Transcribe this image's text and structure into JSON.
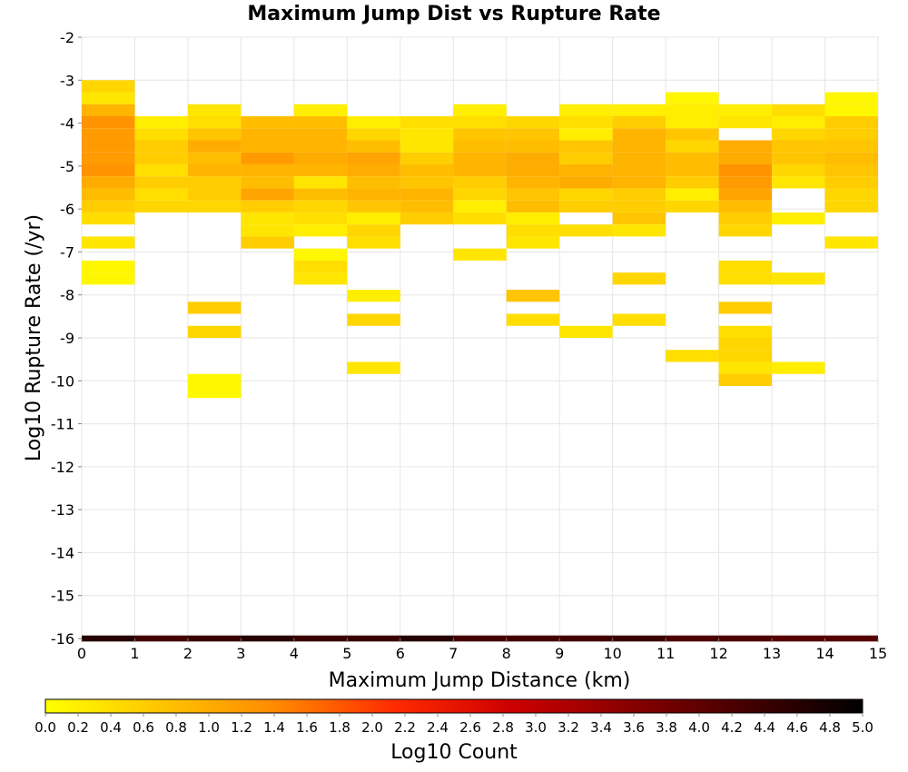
{
  "chart_data": {
    "type": "heatmap",
    "title": "Maximum Jump Dist vs Rupture Rate",
    "xlabel": "Maximum Jump Distance (km)",
    "ylabel": "Log10 Rupture Rate (/yr)",
    "xlim": [
      0,
      15
    ],
    "ylim": [
      -16,
      -2
    ],
    "x_ticks": [
      "0",
      "1",
      "2",
      "3",
      "4",
      "5",
      "6",
      "7",
      "8",
      "9",
      "10",
      "11",
      "12",
      "13",
      "14",
      "15"
    ],
    "y_ticks": [
      "-2",
      "-3",
      "-4",
      "-5",
      "-6",
      "-7",
      "-8",
      "-9",
      "-10",
      "-11",
      "-12",
      "-13",
      "-14",
      "-15",
      "-16"
    ],
    "x_bin_width": 1,
    "y_bin_height": 0.28,
    "grid": true,
    "colorbar": {
      "label": "Log10 Count",
      "range": [
        0,
        5
      ],
      "ticks": [
        "0.0",
        "0.2",
        "0.4",
        "0.6",
        "0.8",
        "1.0",
        "1.2",
        "1.4",
        "1.6",
        "1.8",
        "2.0",
        "2.2",
        "2.4",
        "2.6",
        "2.8",
        "3.0",
        "3.2",
        "3.4",
        "3.6",
        "3.8",
        "4.0",
        "4.2",
        "4.4",
        "4.6",
        "4.8",
        "5.0"
      ],
      "colors": [
        "#ffff00",
        "#ffc400",
        "#ff8800",
        "#ff2a00",
        "#cc0000",
        "#880000",
        "#440000",
        "#000000"
      ]
    },
    "cells": [
      [
        0,
        -3.14,
        0.5
      ],
      [
        0,
        -3.42,
        0.3
      ],
      [
        0,
        -3.7,
        0.9
      ],
      [
        0,
        -3.98,
        1.3
      ],
      [
        0,
        -4.26,
        1.2
      ],
      [
        0,
        -4.54,
        1.2
      ],
      [
        0,
        -4.82,
        1.2
      ],
      [
        0,
        -5.1,
        1.3
      ],
      [
        0,
        -5.38,
        1.0
      ],
      [
        0,
        -5.66,
        0.8
      ],
      [
        0,
        -5.94,
        0.6
      ],
      [
        0,
        -6.22,
        0.4
      ],
      [
        0,
        -6.78,
        0.3
      ],
      [
        0,
        -7.34,
        0.1
      ],
      [
        0,
        -7.62,
        0.1
      ],
      [
        1,
        -3.98,
        0.2
      ],
      [
        1,
        -4.26,
        0.4
      ],
      [
        1,
        -4.54,
        0.6
      ],
      [
        1,
        -4.82,
        0.6
      ],
      [
        1,
        -5.1,
        0.4
      ],
      [
        1,
        -5.38,
        0.6
      ],
      [
        1,
        -5.66,
        0.4
      ],
      [
        1,
        -5.94,
        0.5
      ],
      [
        2,
        -3.7,
        0.3
      ],
      [
        2,
        -3.98,
        0.4
      ],
      [
        2,
        -4.26,
        0.7
      ],
      [
        2,
        -4.54,
        1.0
      ],
      [
        2,
        -4.82,
        0.8
      ],
      [
        2,
        -5.1,
        0.9
      ],
      [
        2,
        -5.38,
        0.6
      ],
      [
        2,
        -5.66,
        0.6
      ],
      [
        2,
        -5.94,
        0.5
      ],
      [
        2,
        -8.3,
        0.6
      ],
      [
        2,
        -8.86,
        0.5
      ],
      [
        2,
        -9.98,
        0.1
      ],
      [
        2,
        -10.26,
        0.1
      ],
      [
        3,
        -3.98,
        0.8
      ],
      [
        3,
        -4.26,
        0.9
      ],
      [
        3,
        -4.54,
        0.9
      ],
      [
        3,
        -4.82,
        1.2
      ],
      [
        3,
        -5.1,
        0.9
      ],
      [
        3,
        -5.38,
        0.8
      ],
      [
        3,
        -5.66,
        1.1
      ],
      [
        3,
        -5.94,
        0.6
      ],
      [
        3,
        -6.22,
        0.3
      ],
      [
        3,
        -6.5,
        0.3
      ],
      [
        3,
        -6.78,
        0.6
      ],
      [
        4,
        -3.7,
        0.2
      ],
      [
        4,
        -3.98,
        0.8
      ],
      [
        4,
        -4.26,
        0.9
      ],
      [
        4,
        -4.54,
        0.9
      ],
      [
        4,
        -4.82,
        1.0
      ],
      [
        4,
        -5.1,
        0.9
      ],
      [
        4,
        -5.38,
        0.3
      ],
      [
        4,
        -5.66,
        0.8
      ],
      [
        4,
        -5.94,
        0.5
      ],
      [
        4,
        -6.22,
        0.4
      ],
      [
        4,
        -6.5,
        0.2
      ],
      [
        4,
        -7.06,
        0.1
      ],
      [
        4,
        -7.34,
        0.4
      ],
      [
        4,
        -7.62,
        0.3
      ],
      [
        5,
        -3.98,
        0.2
      ],
      [
        5,
        -4.26,
        0.5
      ],
      [
        5,
        -4.54,
        0.8
      ],
      [
        5,
        -4.82,
        1.1
      ],
      [
        5,
        -5.1,
        1.0
      ],
      [
        5,
        -5.38,
        0.8
      ],
      [
        5,
        -5.66,
        0.9
      ],
      [
        5,
        -5.94,
        0.7
      ],
      [
        5,
        -6.22,
        0.2
      ],
      [
        5,
        -6.5,
        0.5
      ],
      [
        5,
        -6.78,
        0.4
      ],
      [
        5,
        -8.02,
        0.2
      ],
      [
        5,
        -8.58,
        0.5
      ],
      [
        5,
        -9.7,
        0.3
      ],
      [
        6,
        -3.98,
        0.4
      ],
      [
        6,
        -4.26,
        0.3
      ],
      [
        6,
        -4.54,
        0.3
      ],
      [
        6,
        -4.82,
        0.6
      ],
      [
        6,
        -5.1,
        0.8
      ],
      [
        6,
        -5.38,
        0.7
      ],
      [
        6,
        -5.66,
        0.9
      ],
      [
        6,
        -5.94,
        0.8
      ],
      [
        6,
        -6.22,
        0.6
      ],
      [
        7,
        -3.7,
        0.2
      ],
      [
        7,
        -3.98,
        0.4
      ],
      [
        7,
        -4.26,
        0.7
      ],
      [
        7,
        -4.54,
        0.8
      ],
      [
        7,
        -4.82,
        0.9
      ],
      [
        7,
        -5.1,
        0.9
      ],
      [
        7,
        -5.38,
        0.6
      ],
      [
        7,
        -5.66,
        0.5
      ],
      [
        7,
        -5.94,
        0.2
      ],
      [
        7,
        -6.22,
        0.4
      ],
      [
        7,
        -7.06,
        0.3
      ],
      [
        8,
        -3.98,
        0.5
      ],
      [
        8,
        -4.26,
        0.7
      ],
      [
        8,
        -4.54,
        0.8
      ],
      [
        8,
        -4.82,
        1.0
      ],
      [
        8,
        -5.1,
        1.0
      ],
      [
        8,
        -5.38,
        0.9
      ],
      [
        8,
        -5.66,
        0.7
      ],
      [
        8,
        -5.94,
        0.8
      ],
      [
        8,
        -6.22,
        0.2
      ],
      [
        8,
        -6.5,
        0.4
      ],
      [
        8,
        -6.78,
        0.3
      ],
      [
        8,
        -8.02,
        0.7
      ],
      [
        8,
        -8.58,
        0.4
      ],
      [
        9,
        -3.7,
        0.2
      ],
      [
        9,
        -3.98,
        0.4
      ],
      [
        9,
        -4.26,
        0.2
      ],
      [
        9,
        -4.54,
        0.7
      ],
      [
        9,
        -4.82,
        0.6
      ],
      [
        9,
        -5.1,
        0.9
      ],
      [
        9,
        -5.38,
        1.0
      ],
      [
        9,
        -5.66,
        0.5
      ],
      [
        9,
        -5.94,
        0.6
      ],
      [
        9,
        -6.5,
        0.4
      ],
      [
        9,
        -8.86,
        0.3
      ],
      [
        10,
        -3.7,
        0.2
      ],
      [
        10,
        -3.98,
        0.6
      ],
      [
        10,
        -4.26,
        0.9
      ],
      [
        10,
        -4.54,
        0.9
      ],
      [
        10,
        -4.82,
        0.9
      ],
      [
        10,
        -5.1,
        0.9
      ],
      [
        10,
        -5.38,
        0.9
      ],
      [
        10,
        -5.66,
        0.6
      ],
      [
        10,
        -5.94,
        0.6
      ],
      [
        10,
        -6.22,
        0.7
      ],
      [
        10,
        -6.5,
        0.3
      ],
      [
        10,
        -7.62,
        0.5
      ],
      [
        10,
        -8.58,
        0.4
      ],
      [
        11,
        -3.42,
        0.1
      ],
      [
        11,
        -3.7,
        0.2
      ],
      [
        11,
        -3.98,
        0.2
      ],
      [
        11,
        -4.26,
        0.7
      ],
      [
        11,
        -4.54,
        0.5
      ],
      [
        11,
        -4.82,
        0.8
      ],
      [
        11,
        -5.1,
        0.8
      ],
      [
        11,
        -5.38,
        0.6
      ],
      [
        11,
        -5.66,
        0.2
      ],
      [
        11,
        -5.94,
        0.5
      ],
      [
        11,
        -9.42,
        0.4
      ],
      [
        12,
        -3.7,
        0.2
      ],
      [
        12,
        -3.98,
        0.3
      ],
      [
        12,
        -4.54,
        1.0
      ],
      [
        12,
        -4.82,
        1.0
      ],
      [
        12,
        -5.1,
        1.3
      ],
      [
        12,
        -5.38,
        1.2
      ],
      [
        12,
        -5.66,
        1.1
      ],
      [
        12,
        -5.94,
        0.8
      ],
      [
        12,
        -6.22,
        0.6
      ],
      [
        12,
        -6.5,
        0.5
      ],
      [
        12,
        -7.34,
        0.4
      ],
      [
        12,
        -7.62,
        0.4
      ],
      [
        12,
        -8.3,
        0.6
      ],
      [
        12,
        -8.86,
        0.4
      ],
      [
        12,
        -9.14,
        0.5
      ],
      [
        12,
        -9.42,
        0.5
      ],
      [
        12,
        -9.7,
        0.3
      ],
      [
        12,
        -9.98,
        0.6
      ],
      [
        13,
        -3.7,
        0.4
      ],
      [
        13,
        -3.98,
        0.2
      ],
      [
        13,
        -4.26,
        0.5
      ],
      [
        13,
        -4.54,
        0.7
      ],
      [
        13,
        -4.82,
        0.7
      ],
      [
        13,
        -5.1,
        0.5
      ],
      [
        13,
        -5.38,
        0.3
      ],
      [
        13,
        -6.22,
        0.2
      ],
      [
        13,
        -7.62,
        0.3
      ],
      [
        13,
        -9.7,
        0.2
      ],
      [
        14,
        -3.42,
        0.1
      ],
      [
        14,
        -3.7,
        0.1
      ],
      [
        14,
        -3.98,
        0.6
      ],
      [
        14,
        -4.26,
        0.6
      ],
      [
        14,
        -4.54,
        0.7
      ],
      [
        14,
        -4.82,
        0.8
      ],
      [
        14,
        -5.1,
        0.7
      ],
      [
        14,
        -5.38,
        0.6
      ],
      [
        14,
        -5.66,
        0.5
      ],
      [
        14,
        -5.94,
        0.5
      ],
      [
        14,
        -6.78,
        0.3
      ]
    ],
    "bottom_row": {
      "y": -16,
      "values": [
        4.6,
        4.3,
        4.4,
        4.6,
        4.4,
        4.4,
        4.6,
        4.3,
        4.3,
        4.3,
        4.4,
        4.2,
        4.2,
        4.1,
        4.1
      ]
    }
  }
}
